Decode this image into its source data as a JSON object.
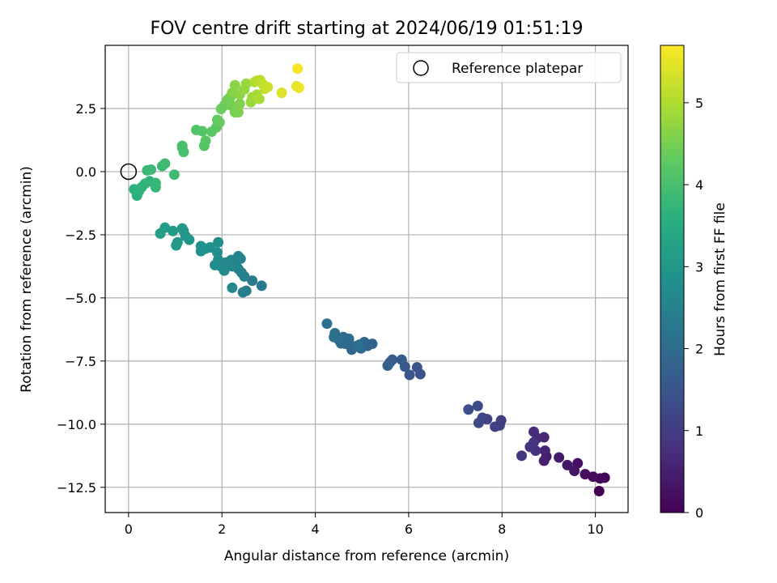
{
  "chart_data": {
    "type": "scatter",
    "title": "FOV centre drift starting at 2024/06/19 01:51:19",
    "xlabel": "Angular distance from reference (arcmin)",
    "ylabel": "Rotation from reference (arcmin)",
    "xlim": [
      -0.5,
      10.7
    ],
    "ylim": [
      -13.5,
      5.0
    ],
    "xticks": [
      0,
      2,
      4,
      6,
      8,
      10
    ],
    "xtick_labels": [
      "0",
      "2",
      "4",
      "6",
      "8",
      "10"
    ],
    "yticks": [
      2.5,
      0.0,
      -2.5,
      -5.0,
      -7.5,
      -10.0,
      -12.5
    ],
    "ytick_labels": [
      "2.5",
      "0.0",
      "−2.5",
      "−5.0",
      "−7.5",
      "−10.0",
      "−12.5"
    ],
    "grid": true,
    "legend": {
      "position": "top-right",
      "entries": [
        "Reference platepar"
      ]
    },
    "reference_point": {
      "x": 0.0,
      "y": 0.0
    },
    "colorbar": {
      "label": "Hours from first FF file",
      "range": [
        0,
        5.7
      ],
      "ticks": [
        0,
        1,
        2,
        3,
        4,
        5
      ],
      "tick_labels": [
        "0",
        "1",
        "2",
        "3",
        "4",
        "5"
      ],
      "colormap": "viridis"
    },
    "points": [
      {
        "x": 10.08,
        "y": -12.65,
        "t": 0.0
      },
      {
        "x": 10.2,
        "y": -12.12,
        "t": 0.05
      },
      {
        "x": 10.1,
        "y": -12.15,
        "t": 0.1
      },
      {
        "x": 9.95,
        "y": -12.08,
        "t": 0.15
      },
      {
        "x": 9.78,
        "y": -11.98,
        "t": 0.2
      },
      {
        "x": 9.62,
        "y": -11.55,
        "t": 0.25
      },
      {
        "x": 9.55,
        "y": -11.85,
        "t": 0.3
      },
      {
        "x": 9.4,
        "y": -11.62,
        "t": 0.35
      },
      {
        "x": 9.22,
        "y": -11.32,
        "t": 0.4
      },
      {
        "x": 8.95,
        "y": -11.28,
        "t": 0.45
      },
      {
        "x": 8.9,
        "y": -11.45,
        "t": 0.5
      },
      {
        "x": 8.92,
        "y": -11.05,
        "t": 0.55
      },
      {
        "x": 8.9,
        "y": -10.52,
        "t": 0.6
      },
      {
        "x": 8.75,
        "y": -10.55,
        "t": 0.65
      },
      {
        "x": 8.68,
        "y": -10.3,
        "t": 0.7
      },
      {
        "x": 8.72,
        "y": -11.05,
        "t": 0.75
      },
      {
        "x": 8.6,
        "y": -10.9,
        "t": 0.8
      },
      {
        "x": 8.68,
        "y": -10.72,
        "t": 0.85
      },
      {
        "x": 8.42,
        "y": -11.25,
        "t": 0.9
      },
      {
        "x": 7.98,
        "y": -9.85,
        "t": 1.0
      },
      {
        "x": 7.95,
        "y": -10.05,
        "t": 1.05
      },
      {
        "x": 7.85,
        "y": -10.1,
        "t": 1.1
      },
      {
        "x": 7.68,
        "y": -9.8,
        "t": 1.15
      },
      {
        "x": 7.58,
        "y": -9.75,
        "t": 1.2
      },
      {
        "x": 7.5,
        "y": -9.95,
        "t": 1.25
      },
      {
        "x": 7.48,
        "y": -9.28,
        "t": 1.3
      },
      {
        "x": 7.28,
        "y": -9.42,
        "t": 1.35
      },
      {
        "x": 6.25,
        "y": -8.02,
        "t": 1.4
      },
      {
        "x": 6.18,
        "y": -7.75,
        "t": 1.45
      },
      {
        "x": 6.02,
        "y": -8.05,
        "t": 1.5
      },
      {
        "x": 5.92,
        "y": -7.72,
        "t": 1.55
      },
      {
        "x": 5.85,
        "y": -7.45,
        "t": 1.6
      },
      {
        "x": 5.65,
        "y": -7.45,
        "t": 1.65
      },
      {
        "x": 5.6,
        "y": -7.55,
        "t": 1.7
      },
      {
        "x": 5.55,
        "y": -7.68,
        "t": 1.75
      },
      {
        "x": 5.22,
        "y": -6.82,
        "t": 1.8
      },
      {
        "x": 5.12,
        "y": -6.9,
        "t": 1.82
      },
      {
        "x": 5.05,
        "y": -6.75,
        "t": 1.85
      },
      {
        "x": 4.98,
        "y": -7.0,
        "t": 1.88
      },
      {
        "x": 4.95,
        "y": -6.85,
        "t": 1.9
      },
      {
        "x": 4.85,
        "y": -6.92,
        "t": 1.92
      },
      {
        "x": 4.78,
        "y": -7.05,
        "t": 1.94
      },
      {
        "x": 4.72,
        "y": -6.62,
        "t": 1.96
      },
      {
        "x": 4.65,
        "y": -6.82,
        "t": 1.98
      },
      {
        "x": 4.6,
        "y": -6.55,
        "t": 2.0
      },
      {
        "x": 4.55,
        "y": -6.8,
        "t": 2.02
      },
      {
        "x": 4.5,
        "y": -6.65,
        "t": 2.04
      },
      {
        "x": 4.42,
        "y": -6.4,
        "t": 2.06
      },
      {
        "x": 4.4,
        "y": -6.55,
        "t": 2.08
      },
      {
        "x": 4.25,
        "y": -6.02,
        "t": 2.1
      },
      {
        "x": 4.92,
        "y": -6.88,
        "t": 2.12
      },
      {
        "x": 2.85,
        "y": -4.52,
        "t": 2.3
      },
      {
        "x": 2.65,
        "y": -4.32,
        "t": 2.35
      },
      {
        "x": 2.52,
        "y": -4.72,
        "t": 2.4
      },
      {
        "x": 2.45,
        "y": -4.78,
        "t": 2.42
      },
      {
        "x": 2.48,
        "y": -4.15,
        "t": 2.45
      },
      {
        "x": 2.42,
        "y": -4.0,
        "t": 2.48
      },
      {
        "x": 2.35,
        "y": -3.85,
        "t": 2.5
      },
      {
        "x": 2.4,
        "y": -3.45,
        "t": 2.52
      },
      {
        "x": 2.35,
        "y": -3.35,
        "t": 2.54
      },
      {
        "x": 2.3,
        "y": -3.72,
        "t": 2.56
      },
      {
        "x": 2.22,
        "y": -3.75,
        "t": 2.58
      },
      {
        "x": 2.2,
        "y": -3.5,
        "t": 2.6
      },
      {
        "x": 2.15,
        "y": -3.7,
        "t": 2.62
      },
      {
        "x": 2.22,
        "y": -4.6,
        "t": 2.64
      },
      {
        "x": 2.08,
        "y": -3.6,
        "t": 2.66
      },
      {
        "x": 2.05,
        "y": -3.92,
        "t": 2.68
      },
      {
        "x": 1.98,
        "y": -3.75,
        "t": 2.7
      },
      {
        "x": 1.92,
        "y": -3.5,
        "t": 2.72
      },
      {
        "x": 1.9,
        "y": -3.65,
        "t": 2.74
      },
      {
        "x": 1.85,
        "y": -3.7,
        "t": 2.76
      },
      {
        "x": 1.92,
        "y": -2.8,
        "t": 2.78
      },
      {
        "x": 1.9,
        "y": -3.2,
        "t": 2.8
      },
      {
        "x": 1.75,
        "y": -3.0,
        "t": 2.82
      },
      {
        "x": 1.65,
        "y": -3.05,
        "t": 2.84
      },
      {
        "x": 1.55,
        "y": -3.15,
        "t": 2.86
      },
      {
        "x": 1.55,
        "y": -2.95,
        "t": 2.88
      },
      {
        "x": 1.3,
        "y": -2.7,
        "t": 2.95
      },
      {
        "x": 1.22,
        "y": -2.55,
        "t": 2.98
      },
      {
        "x": 1.18,
        "y": -2.35,
        "t": 3.0
      },
      {
        "x": 1.15,
        "y": -2.25,
        "t": 3.02
      },
      {
        "x": 1.05,
        "y": -2.8,
        "t": 3.05
      },
      {
        "x": 1.02,
        "y": -2.92,
        "t": 3.08
      },
      {
        "x": 0.95,
        "y": -2.35,
        "t": 3.1
      },
      {
        "x": 0.78,
        "y": -2.22,
        "t": 3.15
      },
      {
        "x": 0.68,
        "y": -2.45,
        "t": 3.2
      },
      {
        "x": 0.18,
        "y": -0.95,
        "t": 3.6
      },
      {
        "x": 0.12,
        "y": -0.7,
        "t": 3.62
      },
      {
        "x": 0.22,
        "y": -0.78,
        "t": 3.65
      },
      {
        "x": 0.28,
        "y": -0.62,
        "t": 3.68
      },
      {
        "x": 0.35,
        "y": -0.48,
        "t": 3.7
      },
      {
        "x": 0.45,
        "y": -0.38,
        "t": 3.72
      },
      {
        "x": 0.58,
        "y": -0.45,
        "t": 3.75
      },
      {
        "x": 0.58,
        "y": -0.62,
        "t": 3.78
      },
      {
        "x": 0.4,
        "y": 0.05,
        "t": 3.8
      },
      {
        "x": 0.48,
        "y": 0.08,
        "t": 3.82
      },
      {
        "x": 0.72,
        "y": 0.22,
        "t": 3.85
      },
      {
        "x": 0.78,
        "y": 0.32,
        "t": 3.88
      },
      {
        "x": 0.98,
        "y": -0.12,
        "t": 3.9
      },
      {
        "x": 1.15,
        "y": 0.95,
        "t": 3.95
      },
      {
        "x": 1.18,
        "y": 0.78,
        "t": 3.98
      },
      {
        "x": 1.15,
        "y": 1.02,
        "t": 4.0
      },
      {
        "x": 1.45,
        "y": 1.65,
        "t": 4.1
      },
      {
        "x": 1.58,
        "y": 1.6,
        "t": 4.12
      },
      {
        "x": 1.62,
        "y": 1.02,
        "t": 4.15
      },
      {
        "x": 1.65,
        "y": 1.22,
        "t": 4.18
      },
      {
        "x": 1.78,
        "y": 1.58,
        "t": 4.22
      },
      {
        "x": 1.88,
        "y": 1.75,
        "t": 4.25
      },
      {
        "x": 1.9,
        "y": 2.05,
        "t": 4.3
      },
      {
        "x": 1.95,
        "y": 1.95,
        "t": 4.32
      },
      {
        "x": 1.98,
        "y": 2.48,
        "t": 4.38
      },
      {
        "x": 2.05,
        "y": 2.62,
        "t": 4.4
      },
      {
        "x": 2.12,
        "y": 2.85,
        "t": 4.42
      },
      {
        "x": 2.18,
        "y": 2.95,
        "t": 4.45
      },
      {
        "x": 2.2,
        "y": 2.62,
        "t": 4.48
      },
      {
        "x": 2.28,
        "y": 2.35,
        "t": 4.5
      },
      {
        "x": 2.32,
        "y": 2.5,
        "t": 4.52
      },
      {
        "x": 2.35,
        "y": 2.35,
        "t": 4.55
      },
      {
        "x": 2.38,
        "y": 2.68,
        "t": 4.58
      },
      {
        "x": 2.22,
        "y": 3.12,
        "t": 4.62
      },
      {
        "x": 2.28,
        "y": 3.42,
        "t": 4.66
      },
      {
        "x": 2.38,
        "y": 3.05,
        "t": 4.7
      },
      {
        "x": 2.48,
        "y": 3.25,
        "t": 4.75
      },
      {
        "x": 2.52,
        "y": 3.48,
        "t": 4.78
      },
      {
        "x": 2.62,
        "y": 2.75,
        "t": 4.8
      },
      {
        "x": 2.65,
        "y": 2.95,
        "t": 4.85
      },
      {
        "x": 2.75,
        "y": 3.05,
        "t": 4.9
      },
      {
        "x": 2.8,
        "y": 2.88,
        "t": 4.95
      },
      {
        "x": 2.7,
        "y": 3.55,
        "t": 5.0
      },
      {
        "x": 2.75,
        "y": 3.6,
        "t": 5.05
      },
      {
        "x": 2.82,
        "y": 3.62,
        "t": 5.1
      },
      {
        "x": 2.88,
        "y": 3.45,
        "t": 5.15
      },
      {
        "x": 2.92,
        "y": 3.28,
        "t": 5.2
      },
      {
        "x": 2.98,
        "y": 3.35,
        "t": 5.25
      },
      {
        "x": 3.28,
        "y": 3.12,
        "t": 5.4
      },
      {
        "x": 3.6,
        "y": 3.38,
        "t": 5.5
      },
      {
        "x": 3.65,
        "y": 3.32,
        "t": 5.55
      },
      {
        "x": 3.62,
        "y": 4.08,
        "t": 5.65
      }
    ]
  }
}
